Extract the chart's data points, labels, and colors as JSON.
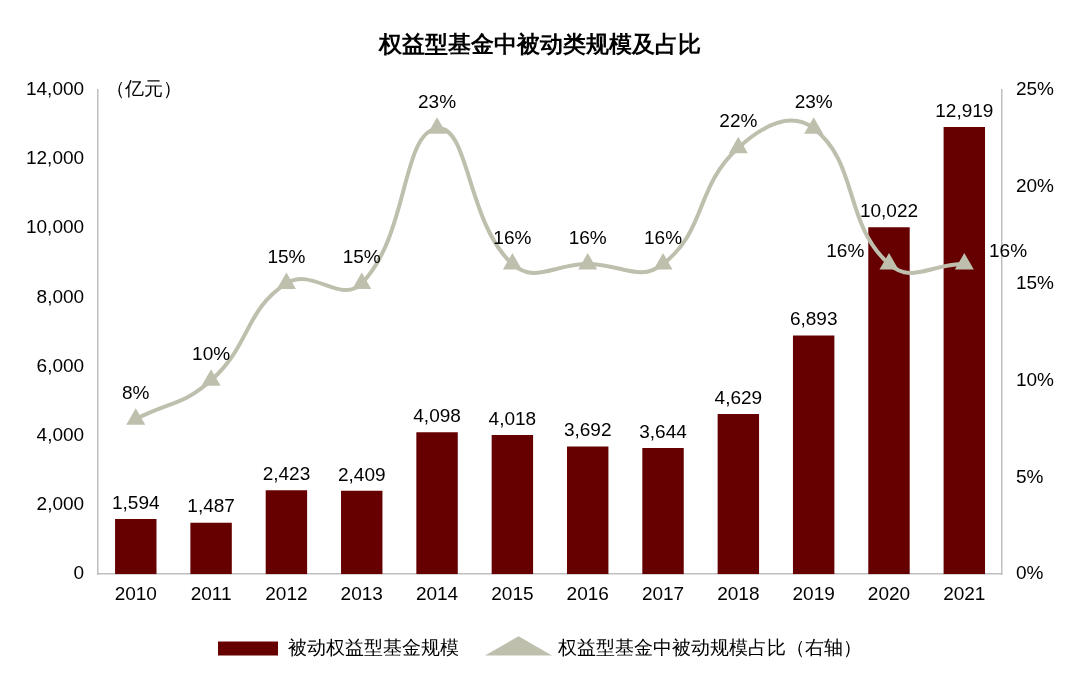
{
  "chart_data": {
    "type": "bar",
    "title": "权益型基金中被动类规模及占比",
    "ylabel": "（亿元）",
    "categories": [
      "2010",
      "2011",
      "2012",
      "2013",
      "2014",
      "2015",
      "2016",
      "2017",
      "2018",
      "2019",
      "2020",
      "2021"
    ],
    "series": [
      {
        "name": "被动权益型基金规模",
        "color": "#660000",
        "values": [
          1594,
          1487,
          2423,
          2409,
          4098,
          4018,
          3692,
          3644,
          4629,
          6893,
          10022,
          12919
        ],
        "value_labels": [
          "1,594",
          "1,487",
          "2,423",
          "2,409",
          "4,098",
          "4,018",
          "3,692",
          "3,644",
          "4,629",
          "6,893",
          "10,022",
          "12,919"
        ]
      },
      {
        "name": "权益型基金中被动规模占比（右轴）",
        "type": "line",
        "axis": "y2",
        "color": "#bfbfae",
        "marker": "triangle",
        "values": [
          8,
          10,
          15,
          15,
          23,
          16,
          16,
          16,
          22,
          23,
          16,
          16
        ],
        "value_labels": [
          "8%",
          "10%",
          "15%",
          "15%",
          "23%",
          "16%",
          "16%",
          "16%",
          "22%",
          "23%",
          "16%",
          "16%"
        ]
      }
    ],
    "ylim": [
      0,
      14000
    ],
    "yticks": [
      {
        "value": 0,
        "label": "0"
      },
      {
        "value": 2000,
        "label": "2,000"
      },
      {
        "value": 4000,
        "label": "4,000"
      },
      {
        "value": 6000,
        "label": "6,000"
      },
      {
        "value": 8000,
        "label": "8,000"
      },
      {
        "value": 10000,
        "label": "10,000"
      },
      {
        "value": 12000,
        "label": "12,000"
      },
      {
        "value": 14000,
        "label": "14,000"
      }
    ],
    "y2lim": [
      0,
      25
    ],
    "y2ticks": [
      {
        "value": 0,
        "label": "0%"
      },
      {
        "value": 5,
        "label": "5%"
      },
      {
        "value": 10,
        "label": "10%"
      },
      {
        "value": 15,
        "label": "15%"
      },
      {
        "value": 20,
        "label": "20%"
      },
      {
        "value": 25,
        "label": "25%"
      }
    ],
    "grid": false,
    "legend": "bottom"
  }
}
